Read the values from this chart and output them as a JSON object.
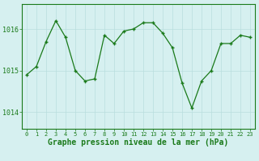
{
  "x": [
    0,
    1,
    2,
    3,
    4,
    5,
    6,
    7,
    8,
    9,
    10,
    11,
    12,
    13,
    14,
    15,
    16,
    17,
    18,
    19,
    20,
    21,
    22,
    23
  ],
  "y": [
    1014.9,
    1015.1,
    1015.7,
    1016.2,
    1015.8,
    1015.0,
    1014.75,
    1014.8,
    1015.85,
    1015.65,
    1015.95,
    1016.0,
    1016.15,
    1016.15,
    1015.9,
    1015.55,
    1014.7,
    1014.1,
    1014.75,
    1015.0,
    1015.65,
    1015.65,
    1015.85,
    1015.8
  ],
  "line_color": "#1a7a1a",
  "marker": "+",
  "marker_color": "#1a7a1a",
  "bg_color": "#d6f0f0",
  "grid_color": "#b8dede",
  "tick_color": "#1a7a1a",
  "xlabel": "Graphe pression niveau de la mer (hPa)",
  "xlabel_fontsize": 7,
  "xlabel_color": "#1a7a1a",
  "yticks": [
    1014,
    1015,
    1016
  ],
  "ylim": [
    1013.6,
    1016.6
  ],
  "xlim": [
    -0.5,
    23.5
  ],
  "spine_color": "#1a7a1a"
}
